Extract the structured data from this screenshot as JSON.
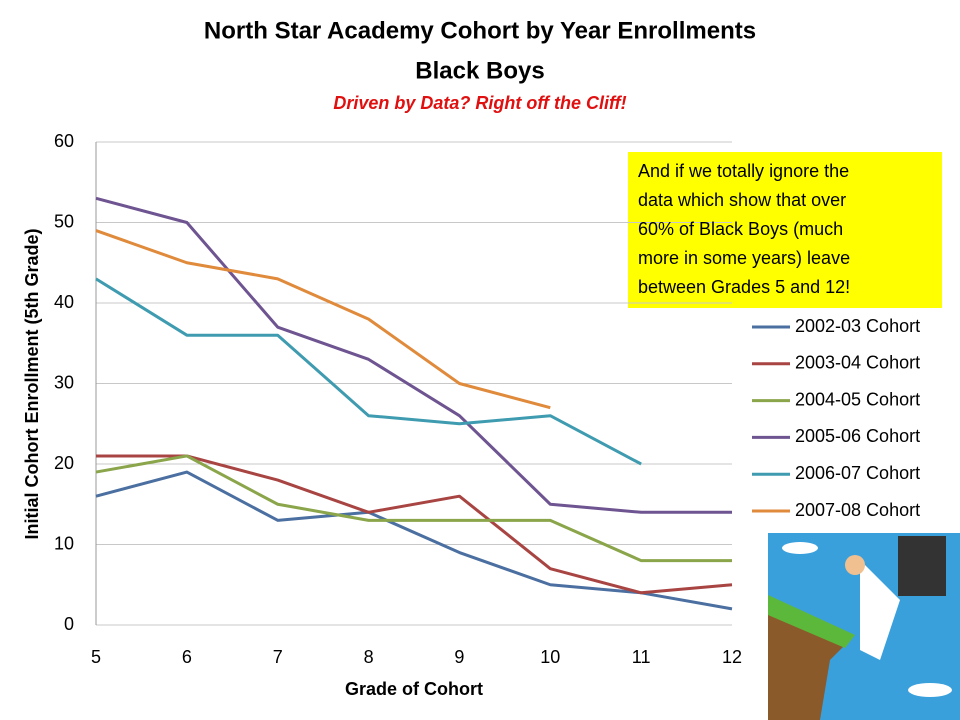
{
  "chart_data": {
    "type": "line",
    "title": "North Star Academy Cohort by Year Enrollments",
    "subtitle": "Black Boys",
    "tagline": "Driven by Data? Right off the Cliff!",
    "x_label": "Grade of Cohort",
    "y_label": "Initial Cohort Enrollment (5th Grade)",
    "x": [
      5,
      6,
      7,
      8,
      9,
      10,
      11,
      12
    ],
    "xlim": [
      5,
      12
    ],
    "xticks": [
      5,
      6,
      7,
      8,
      9,
      10,
      11,
      12
    ],
    "ylim": [
      0,
      60
    ],
    "yticks": [
      0,
      10,
      20,
      30,
      40,
      50,
      60
    ],
    "grid": true,
    "legend": "right",
    "series": [
      {
        "name": "2002-03 Cohort",
        "color": "#4a6fa0",
        "values": [
          16,
          19,
          13,
          14,
          9,
          5,
          4,
          2
        ]
      },
      {
        "name": "2003-04 Cohort",
        "color": "#a84543",
        "values": [
          21,
          21,
          18,
          14,
          16,
          7,
          4,
          5
        ]
      },
      {
        "name": "2004-05 Cohort",
        "color": "#8aa54a",
        "values": [
          19,
          21,
          15,
          13,
          13,
          13,
          8,
          8
        ]
      },
      {
        "name": "2005-06 Cohort",
        "color": "#6e5490",
        "values": [
          53,
          50,
          37,
          33,
          26,
          15,
          14,
          14
        ]
      },
      {
        "name": "2006-07 Cohort",
        "color": "#3e9bb0",
        "values": [
          43,
          36,
          36,
          26,
          25,
          26,
          20,
          null
        ]
      },
      {
        "name": "2007-08 Cohort",
        "color": "#e08a3c",
        "values": [
          49,
          45,
          43,
          38,
          30,
          27,
          null,
          null
        ]
      }
    ],
    "annotation": [
      "And if we totally ignore the",
      "data which show that over",
      "60% of Black Boys (much",
      "more in some years) leave",
      "between Grades 5 and 12!"
    ]
  }
}
